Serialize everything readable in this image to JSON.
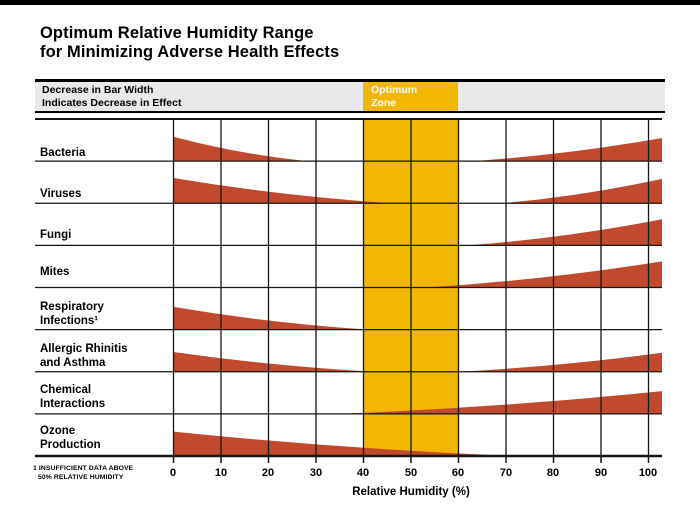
{
  "title": {
    "line1": "Optimum Relative Humidity Range",
    "line2": "for Minimizing Adverse Health Effects"
  },
  "legend": {
    "left_line1": "Decrease in Bar Width",
    "left_line2": "Indicates Decrease in Effect",
    "optimum_line1": "Optimum",
    "optimum_line2": "Zone"
  },
  "footnote": {
    "line1": "1 INSUFFICIENT DATA ABOVE",
    "line2": "50% RELATIVE HUMIDITY"
  },
  "colors": {
    "wedge": "#c14a2e",
    "optimum": "#f2b705",
    "grid": "#161616",
    "legend_bg": "#e9e9e9",
    "top_bar": "#000000"
  },
  "chart_data": {
    "type": "area",
    "title": "Optimum Relative Humidity Range for Minimizing Adverse Health Effects",
    "xlabel": "Relative Humidity (%)",
    "x_range": [
      0,
      100
    ],
    "x_ticks": [
      0,
      10,
      20,
      30,
      40,
      50,
      60,
      70,
      80,
      90,
      100
    ],
    "x_tick_labels": [
      "0",
      "10",
      "20",
      "30",
      "40",
      "50",
      "60",
      "70",
      "80",
      "90",
      "100"
    ],
    "grid": true,
    "optimum_zone": [
      40,
      60
    ],
    "legend_note": "Decrease in Bar Width Indicates Decrease in Effect",
    "rows": [
      {
        "id": "bacteria",
        "label_lines": [
          "Bacteria"
        ],
        "wedges": [
          {
            "side": "left",
            "from": 0,
            "to": 28,
            "height_frac": 0.58
          },
          {
            "side": "right",
            "from": 63,
            "to": 103,
            "height_frac": 0.55
          }
        ]
      },
      {
        "id": "viruses",
        "label_lines": [
          "Viruses"
        ],
        "wedges": [
          {
            "side": "left",
            "from": 0,
            "to": 46,
            "height_frac": 0.6
          },
          {
            "side": "right",
            "from": 69,
            "to": 103,
            "height_frac": 0.58
          }
        ]
      },
      {
        "id": "fungi",
        "label_lines": [
          "Fungi"
        ],
        "wedges": [
          {
            "side": "right",
            "from": 62,
            "to": 103,
            "height_frac": 0.62
          }
        ]
      },
      {
        "id": "mites",
        "label_lines": [
          "Mites"
        ],
        "wedges": [
          {
            "side": "right",
            "from": 53,
            "to": 103,
            "height_frac": 0.62
          }
        ]
      },
      {
        "id": "respiratory-infections",
        "label_lines": [
          "Respiratory",
          "Infections¹"
        ],
        "wedges": [
          {
            "side": "left",
            "from": 0,
            "to": 41,
            "height_frac": 0.54
          }
        ]
      },
      {
        "id": "allergic-rhinitis-asthma",
        "label_lines": [
          "Allergic Rhinitis",
          "and Asthma"
        ],
        "wedges": [
          {
            "side": "left",
            "from": 0,
            "to": 42,
            "height_frac": 0.47
          },
          {
            "side": "right",
            "from": 60,
            "to": 103,
            "height_frac": 0.45
          }
        ]
      },
      {
        "id": "chemical-interactions",
        "label_lines": [
          "Chemical",
          "Interactions"
        ],
        "wedges": [
          {
            "side": "right",
            "from": 35,
            "to": 103,
            "height_frac": 0.54
          }
        ]
      },
      {
        "id": "ozone-production",
        "label_lines": [
          "Ozone",
          "Production"
        ],
        "wedges": [
          {
            "side": "left",
            "from": 0,
            "to": 72,
            "height_frac": 0.58
          }
        ]
      }
    ]
  }
}
